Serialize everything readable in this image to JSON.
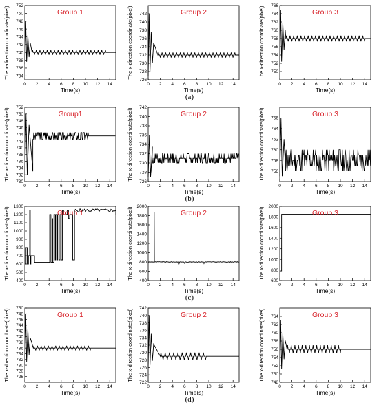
{
  "figure": {
    "captions": [
      "(a)",
      "(b)",
      "(c)",
      "(d)"
    ]
  },
  "chart_data": [
    {
      "type": "line",
      "row": 0,
      "col": 0,
      "title": "Group 1",
      "xlabel": "Time(s)",
      "ylabel": "The x-direction coordinate(pixel)",
      "xlim": [
        0,
        15
      ],
      "ylim": [
        733,
        752
      ],
      "xticks": [
        0,
        2,
        4,
        6,
        8,
        10,
        12,
        14
      ],
      "yticks": [
        734,
        736,
        738,
        740,
        742,
        744,
        746,
        748,
        750,
        752
      ],
      "series": [
        {
          "pattern": "damped",
          "start": 737,
          "final": 740,
          "peak": 748,
          "settle": 1.2,
          "osc_amp": 0.6,
          "osc_period": 0.3,
          "osc_start": 1.2,
          "osc_end": 13.5
        }
      ]
    },
    {
      "type": "line",
      "row": 0,
      "col": 1,
      "title": "Group 2",
      "xlabel": "Time(s)",
      "ylabel": "The x-direction coordinate(pixel)",
      "xlim": [
        0,
        15
      ],
      "ylim": [
        726,
        744
      ],
      "xticks": [
        0,
        2,
        4,
        6,
        8,
        10,
        12,
        14
      ],
      "yticks": [
        726,
        728,
        730,
        732,
        734,
        736,
        738,
        740,
        742
      ],
      "series": [
        {
          "pattern": "damped",
          "start": 727,
          "final": 732,
          "peak": 742,
          "settle": 1.6,
          "osc_amp": 0.6,
          "osc_period": 0.3,
          "osc_start": 1.6,
          "osc_end": 14.5
        }
      ]
    },
    {
      "type": "line",
      "row": 0,
      "col": 2,
      "title": "Group 3",
      "xlabel": "Time(s)",
      "ylabel": "The x-direction coordinate(pixel)",
      "xlim": [
        0,
        15
      ],
      "ylim": [
        748,
        766
      ],
      "xticks": [
        0,
        2,
        4,
        6,
        8,
        10,
        12,
        14
      ],
      "yticks": [
        750,
        752,
        754,
        756,
        758,
        760,
        762,
        764,
        766
      ],
      "series": [
        {
          "pattern": "damped",
          "start": 751,
          "final": 758,
          "peak": 765,
          "settle": 1.0,
          "osc_amp": 0.7,
          "osc_period": 0.3,
          "osc_start": 1.0,
          "osc_end": 14.2
        }
      ]
    },
    {
      "type": "line",
      "row": 1,
      "col": 0,
      "title": "Group1",
      "xlabel": "Time(s)",
      "ylabel": "The x-direction coordinate(pixel)",
      "xlim": [
        0,
        15
      ],
      "ylim": [
        730,
        752
      ],
      "xticks": [
        0,
        2,
        4,
        6,
        8,
        10,
        12,
        14
      ],
      "yticks": [
        730,
        732,
        734,
        736,
        738,
        740,
        742,
        744,
        746,
        748,
        750,
        752
      ],
      "series": [
        {
          "pattern": "noisy",
          "start": 732,
          "final": 743.5,
          "peak": 750,
          "settle": 2.2,
          "noise": 1.5,
          "noise_end": 10.5,
          "seed": 3
        }
      ]
    },
    {
      "type": "line",
      "row": 1,
      "col": 1,
      "title": "Group 2",
      "xlabel": "Time(s)",
      "ylabel": "The x-direction coordinate(pixel)",
      "xlim": [
        0,
        15
      ],
      "ylim": [
        726,
        742
      ],
      "xticks": [
        0,
        2,
        4,
        6,
        8,
        10,
        12,
        14
      ],
      "yticks": [
        726,
        728,
        730,
        732,
        734,
        736,
        738,
        740,
        742
      ],
      "series": [
        {
          "pattern": "noisy",
          "start": 727,
          "final": 731,
          "peak": 736,
          "settle": 1.0,
          "noise": 1.0,
          "noise_end": 15,
          "seed": 7
        }
      ]
    },
    {
      "type": "line",
      "row": 1,
      "col": 2,
      "title": "Group 3",
      "xlabel": "Time(s)",
      "ylabel": "The x-direction coordinate(pixel)",
      "xlim": [
        0,
        15
      ],
      "ylim": [
        754,
        768
      ],
      "xticks": [
        0,
        2,
        4,
        6,
        8,
        10,
        12,
        14
      ],
      "yticks": [
        756,
        758,
        760,
        762,
        764,
        766
      ],
      "series": [
        {
          "pattern": "noisy",
          "start": 755,
          "final": 758,
          "peak": 766,
          "settle": 1.6,
          "noise": 2.2,
          "noise_end": 15,
          "seed": 11
        }
      ]
    },
    {
      "type": "line",
      "row": 2,
      "col": 0,
      "title": "Group 1",
      "xlabel": "Time(s)",
      "ylabel": "The x-direction coordinate(pixel)",
      "xlim": [
        0,
        15
      ],
      "ylim": [
        400,
        1300
      ],
      "xticks": [
        0,
        2,
        4,
        6,
        8,
        10,
        12,
        14
      ],
      "yticks": [
        400,
        500,
        600,
        700,
        800,
        900,
        1000,
        1100,
        1200,
        1300
      ],
      "series": [
        {
          "pattern": "jumps",
          "points": [
            [
              0,
              600
            ],
            [
              0.2,
              800
            ],
            [
              0.4,
              600
            ],
            [
              0.6,
              700
            ],
            [
              0.8,
              1250
            ],
            [
              0.9,
              600
            ],
            [
              1.0,
              700
            ],
            [
              1.5,
              700
            ],
            [
              1.6,
              620
            ],
            [
              4,
              620
            ],
            [
              4.1,
              1200
            ],
            [
              4.3,
              620
            ],
            [
              4.5,
              1150
            ],
            [
              4.6,
              620
            ],
            [
              4.8,
              1200
            ],
            [
              5.0,
              650
            ],
            [
              5.1,
              1200
            ],
            [
              5.3,
              650
            ],
            [
              5.4,
              1200
            ],
            [
              5.6,
              650
            ],
            [
              5.8,
              1200
            ],
            [
              6.0,
              650
            ],
            [
              6.2,
              1250
            ],
            [
              6.4,
              1200
            ],
            [
              7.0,
              1250
            ],
            [
              7.2,
              1150
            ],
            [
              7.4,
              1200
            ],
            [
              7.8,
              1200
            ],
            [
              7.9,
              650
            ],
            [
              8.1,
              650
            ],
            [
              8.2,
              1250
            ],
            [
              15,
              1200
            ]
          ],
          "noise_end": 15,
          "noise": 20
        }
      ]
    },
    {
      "type": "line",
      "row": 2,
      "col": 1,
      "title": "Group 2",
      "xlabel": "Time(s)",
      "ylabel": "The x-direction coordinate(pixel)",
      "xlim": [
        0,
        15
      ],
      "ylim": [
        400,
        2000
      ],
      "xticks": [
        0,
        2,
        4,
        6,
        8,
        10,
        12,
        14
      ],
      "yticks": [
        400,
        600,
        800,
        1000,
        1200,
        1400,
        1600,
        1800,
        2000
      ],
      "series": [
        {
          "pattern": "spike",
          "base": 800,
          "spike_t": 1.0,
          "spike_v": 1880,
          "noise": 12
        }
      ]
    },
    {
      "type": "line",
      "row": 2,
      "col": 2,
      "title": "Group 3",
      "xlabel": "Time(s)",
      "ylabel": "The x-direction coordinate(pixel)",
      "xlim": [
        0,
        15
      ],
      "ylim": [
        600,
        2000
      ],
      "xticks": [
        0,
        2,
        4,
        6,
        8,
        10,
        12,
        14
      ],
      "yticks": [
        600,
        800,
        1000,
        1200,
        1400,
        1600,
        1800,
        2000
      ],
      "series": [
        {
          "pattern": "step",
          "start": 780,
          "final": 1850,
          "step_t": 0.3
        }
      ]
    },
    {
      "type": "line",
      "row": 3,
      "col": 0,
      "title": "Group 1",
      "xlabel": "Time(s)",
      "ylabel": "The x-direction coordinate(pixel)",
      "xlim": [
        0,
        15
      ],
      "ylim": [
        724,
        750
      ],
      "xticks": [
        0,
        2,
        4,
        6,
        8,
        10,
        12,
        14
      ],
      "yticks": [
        726,
        728,
        730,
        732,
        734,
        736,
        738,
        740,
        742,
        744,
        746,
        748,
        750
      ],
      "series": [
        {
          "pattern": "damped",
          "start": 730,
          "final": 736,
          "peak": 748,
          "settle": 1.4,
          "osc_amp": 0.8,
          "osc_period": 0.3,
          "osc_start": 1.4,
          "osc_end": 11.0
        }
      ]
    },
    {
      "type": "line",
      "row": 3,
      "col": 1,
      "title": "Group 2",
      "xlabel": "Time(s)",
      "ylabel": "The x-direction coordinate(pixel)",
      "xlim": [
        0,
        15
      ],
      "ylim": [
        722,
        742
      ],
      "xticks": [
        0,
        2,
        4,
        6,
        8,
        10,
        12,
        14
      ],
      "yticks": [
        722,
        724,
        726,
        728,
        730,
        732,
        734,
        736,
        738,
        740,
        742
      ],
      "series": [
        {
          "pattern": "damped",
          "start": 726,
          "final": 729,
          "peak": 740,
          "settle": 2.0,
          "osc_amp": 1.0,
          "osc_period": 0.35,
          "osc_start": 2.0,
          "osc_end": 9.5
        }
      ]
    },
    {
      "type": "line",
      "row": 3,
      "col": 2,
      "title": "Group 3",
      "xlabel": "Time(s)",
      "ylabel": "The x-direction coordinate(pixel)",
      "xlim": [
        0,
        15
      ],
      "ylim": [
        748,
        766
      ],
      "xticks": [
        0,
        2,
        4,
        6,
        8,
        10,
        12,
        14
      ],
      "yticks": [
        748,
        750,
        752,
        754,
        756,
        758,
        760,
        762,
        764
      ],
      "series": [
        {
          "pattern": "damped",
          "start": 750,
          "final": 756,
          "peak": 763,
          "settle": 1.2,
          "osc_amp": 1.0,
          "osc_period": 0.3,
          "osc_start": 1.2,
          "osc_end": 10.2
        }
      ]
    }
  ]
}
